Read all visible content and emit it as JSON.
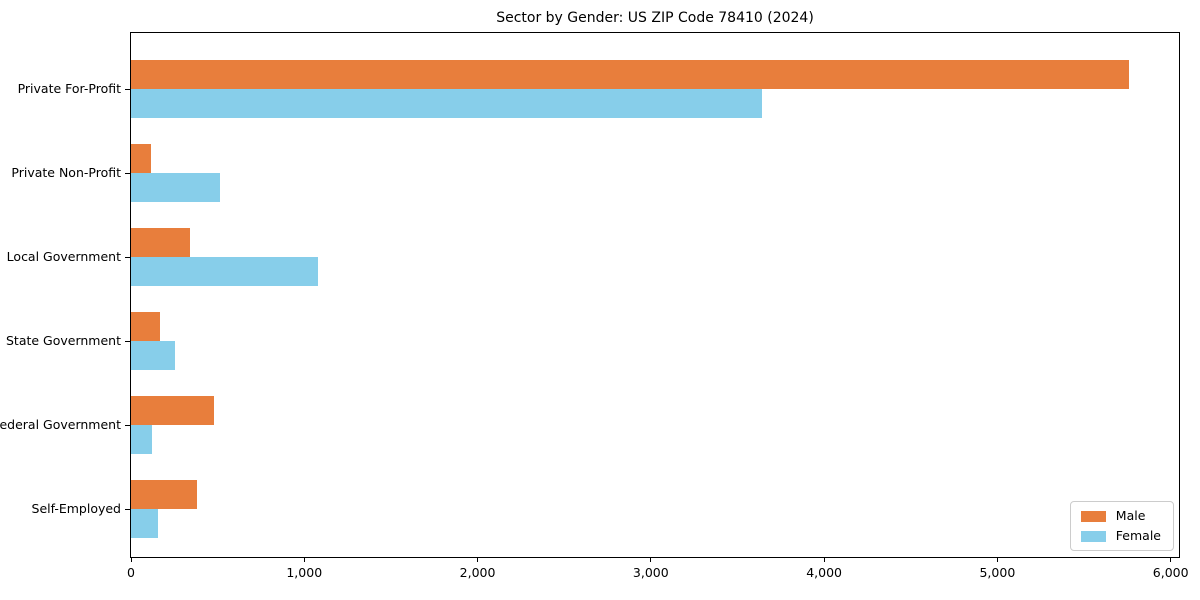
{
  "figure": {
    "background_color": "#ffffff",
    "axis_color": "#000000",
    "legend_border_color": "#cccccc"
  },
  "chart_data": {
    "type": "bar",
    "orientation": "horizontal",
    "title": "Sector by Gender: US ZIP Code 78410 (2024)",
    "xlabel": "",
    "ylabel": "",
    "categories": [
      "Private For-Profit",
      "Private Non-Profit",
      "Local Government",
      "State Government",
      "Federal Government",
      "Self-Employed"
    ],
    "series": [
      {
        "name": "Male",
        "color": "#e87e3c",
        "values": [
          5760,
          115,
          340,
          170,
          480,
          380
        ]
      },
      {
        "name": "Female",
        "color": "#87ceea",
        "values": [
          3640,
          515,
          1080,
          255,
          120,
          155
        ]
      }
    ],
    "xlim": [
      0,
      6048
    ],
    "xticks": [
      0,
      1000,
      2000,
      3000,
      4000,
      5000,
      6000
    ],
    "xtick_labels": [
      "0",
      "1,000",
      "2,000",
      "3,000",
      "4,000",
      "5,000",
      "6,000"
    ],
    "grid": false,
    "legend_position": "lower right"
  }
}
